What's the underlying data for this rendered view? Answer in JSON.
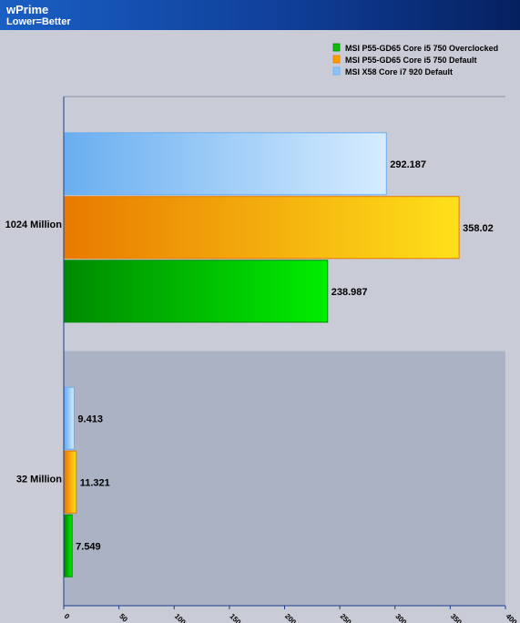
{
  "header": {
    "title": "wPrime",
    "subtitle": "Lower=Better"
  },
  "chart_data": {
    "type": "bar",
    "orientation": "horizontal",
    "title": "wPrime",
    "subtitle": "Lower=Better",
    "categories": [
      "1024 Million",
      "32 Million"
    ],
    "series": [
      {
        "name": "MSI P55-GD65 Core i5 750 Overclocked",
        "values": [
          238.987,
          7.549
        ],
        "color_dark": "#008a00",
        "color_light": "#00ee00",
        "legend_color": "#11b911"
      },
      {
        "name": "MSI P55-GD65 Core i5 750 Default",
        "values": [
          358.02,
          11.321
        ],
        "color_dark": "#e87a00",
        "color_light": "#ffe01a",
        "legend_color": "#f5a000"
      },
      {
        "name": "MSI X58 Core i7 920 Default",
        "values": [
          292.187,
          9.413
        ],
        "color_dark": "#6aaef0",
        "color_light": "#d6ecff",
        "legend_color": "#8ac4f5"
      }
    ],
    "xlim": [
      0,
      400
    ],
    "xticks": [
      0,
      50,
      100,
      150,
      200,
      250,
      300,
      350,
      400
    ],
    "legend_position": "top-right",
    "grid": false
  }
}
